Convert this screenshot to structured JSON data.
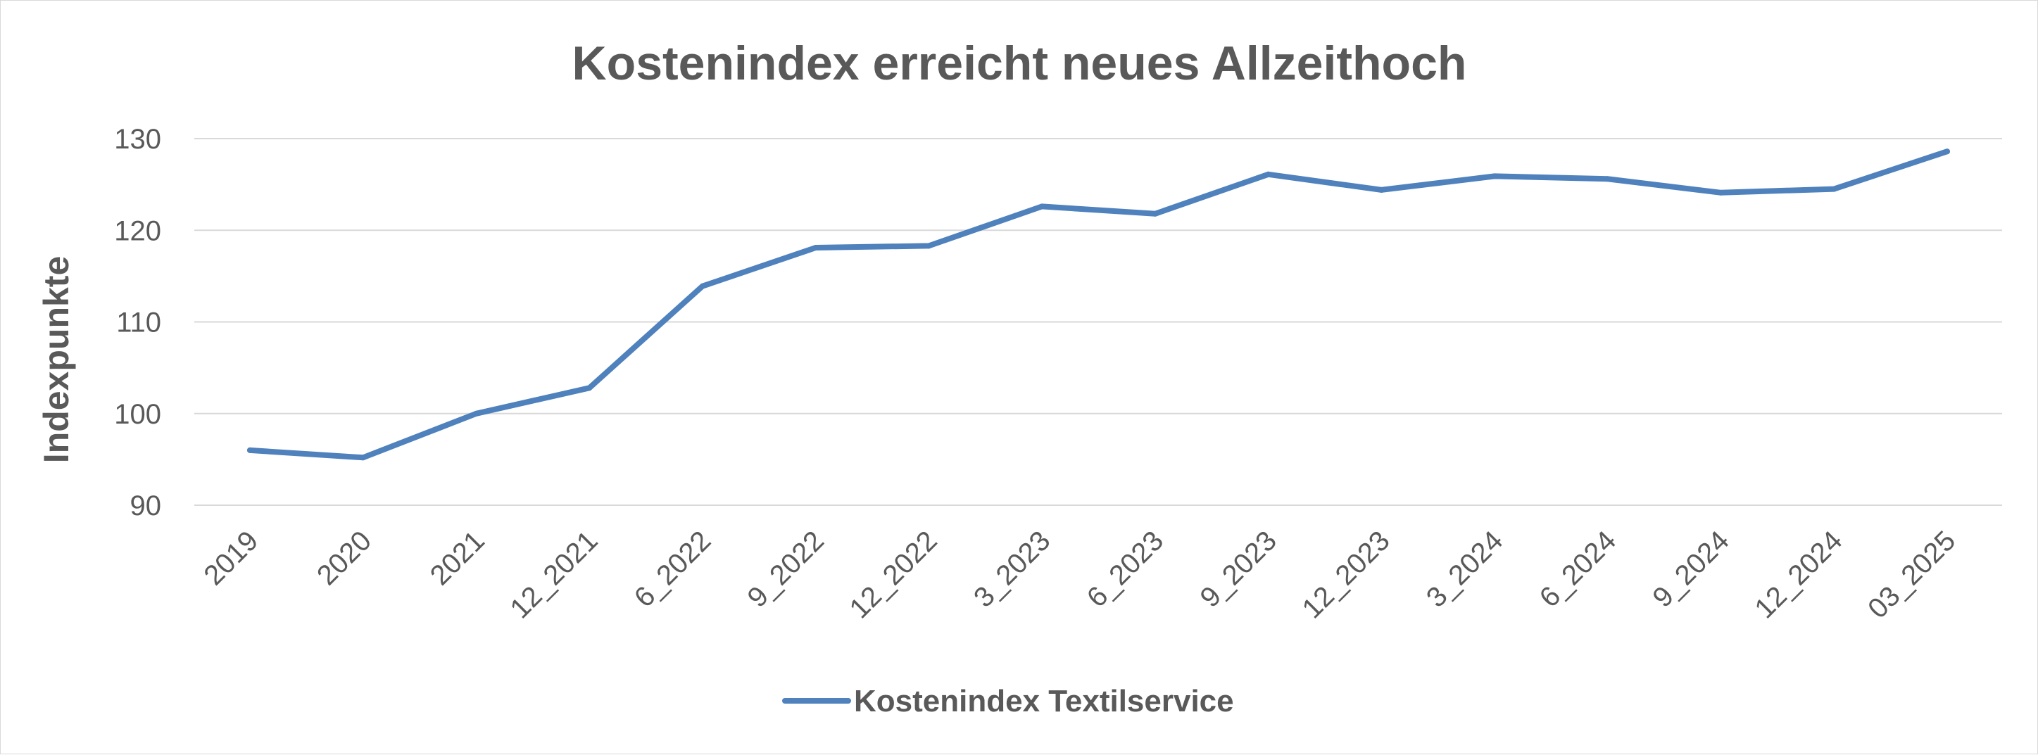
{
  "chart_data": {
    "type": "line",
    "title": "Kostenindex erreicht neues Allzeithoch",
    "xlabel": "",
    "ylabel": "Indexpunkte",
    "categories": [
      "2019",
      "2020",
      "2021",
      "12_2021",
      "6_2022",
      "9_2022",
      "12_2022",
      "3_2023",
      "6_2023",
      "9_2023",
      "12_2023",
      "3_2024",
      "6_2024",
      "9_2024",
      "12_2024",
      "03_2025"
    ],
    "series": [
      {
        "name": "Kostenindex Textilservice",
        "color": "#4f81bd",
        "values": [
          96.0,
          95.2,
          100.0,
          102.8,
          113.9,
          118.1,
          118.3,
          122.6,
          121.8,
          126.1,
          124.4,
          125.9,
          125.6,
          124.1,
          124.5,
          128.6
        ]
      }
    ],
    "ylim": [
      90,
      130
    ],
    "yticks": [
      90,
      100,
      110,
      120,
      130
    ],
    "grid": true,
    "legend_position": "bottom"
  }
}
